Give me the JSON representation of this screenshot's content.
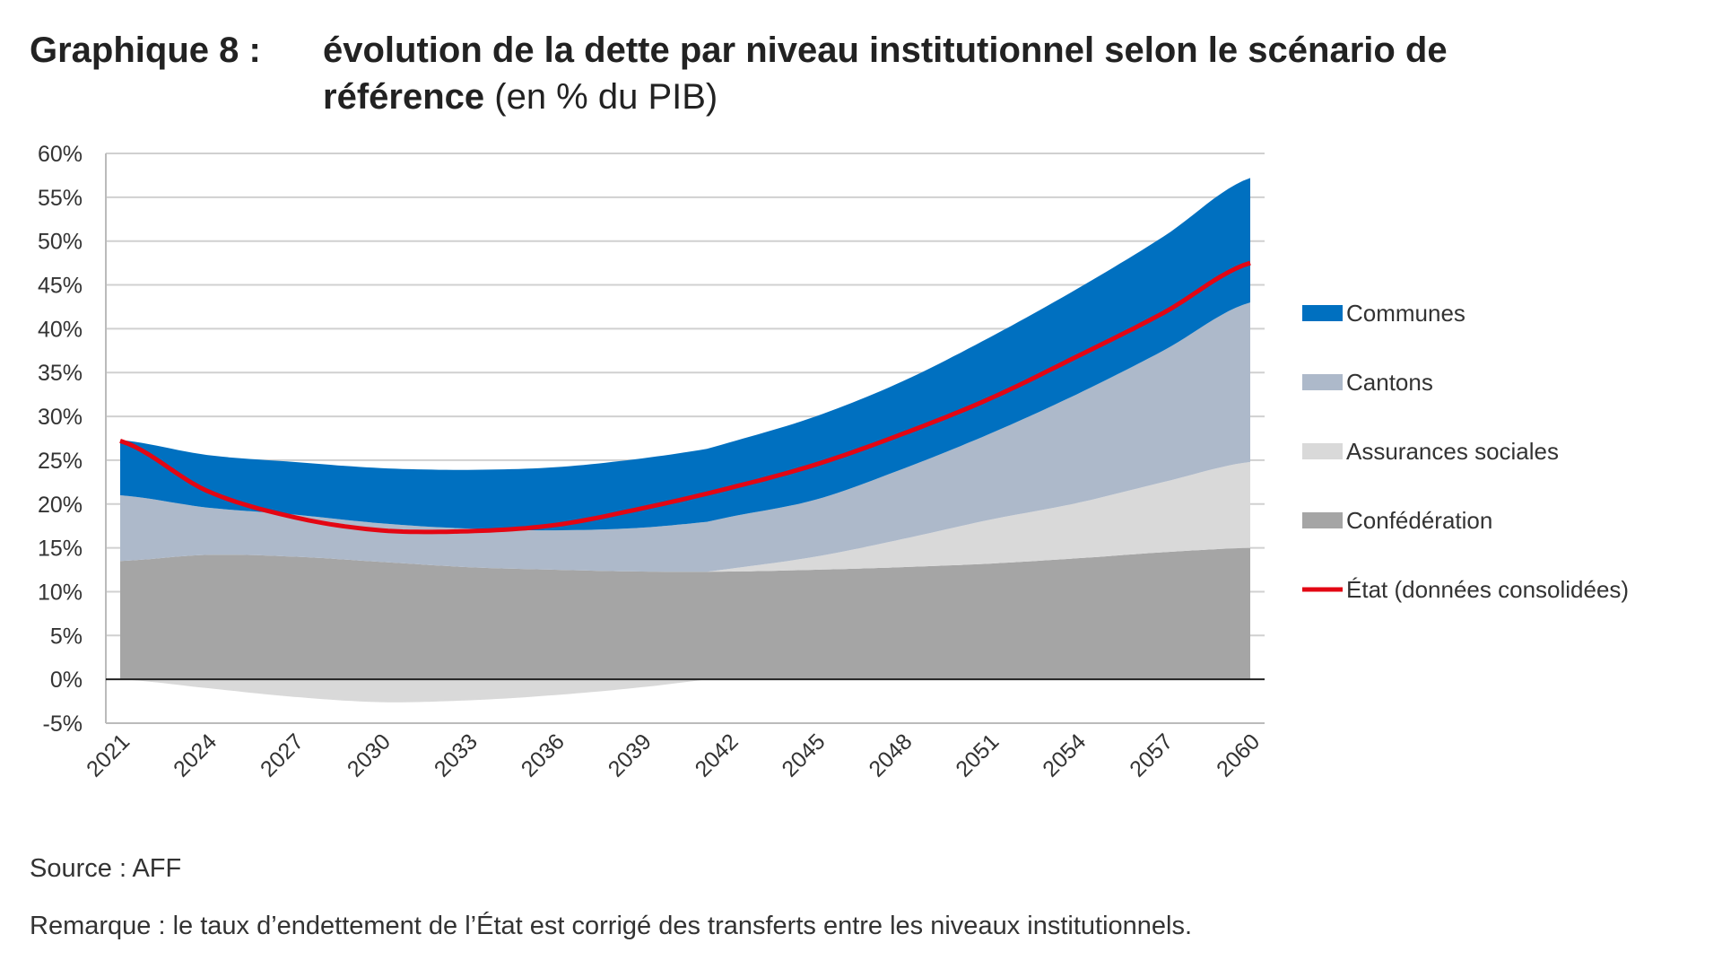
{
  "header": {
    "label": "Graphique 8 :",
    "title": "évolution de la dette par niveau institutionnel selon le scénario de référence",
    "unit": "(en % du PIB)"
  },
  "footer": {
    "source": "Source : AFF",
    "remark": "Remarque : le taux d’endettement de l’État est corrigé des transferts entre les niveaux institutionnels."
  },
  "chart_data": {
    "type": "area",
    "stacked": true,
    "title": "évolution de la dette par niveau institutionnel selon le scénario de référence (en % du PIB)",
    "xlabel": "",
    "ylabel": "",
    "x": [
      2021,
      2024,
      2027,
      2030,
      2033,
      2036,
      2039,
      2042,
      2045,
      2048,
      2051,
      2054,
      2057,
      2060
    ],
    "x_ticks": [
      "2021",
      "2024",
      "2027",
      "2030",
      "2033",
      "2036",
      "2039",
      "2042",
      "2045",
      "2048",
      "2051",
      "2054",
      "2057",
      "2060"
    ],
    "ylim": [
      -5,
      60
    ],
    "y_ticks": [
      "-5%",
      "0%",
      "5%",
      "10%",
      "15%",
      "20%",
      "25%",
      "30%",
      "35%",
      "40%",
      "45%",
      "50%",
      "55%",
      "60%"
    ],
    "grid": true,
    "legend_position": "right",
    "series": [
      {
        "name": "Confédération",
        "kind": "area",
        "color": "#a5a5a5",
        "values": [
          13.5,
          14.2,
          14.0,
          13.4,
          12.8,
          12.5,
          12.3,
          12.3,
          12.5,
          12.8,
          13.2,
          13.8,
          14.5,
          15.0
        ]
      },
      {
        "name": "Assurances sociales",
        "kind": "area",
        "color": "#d9d9d9",
        "values": [
          0,
          -1.0,
          -2.0,
          -2.6,
          -2.4,
          -1.8,
          -0.9,
          0.3,
          1.5,
          3.2,
          5.0,
          6.3,
          8.0,
          9.8
        ]
      },
      {
        "name": "Cantons",
        "kind": "area",
        "color": "#adb9ca",
        "values": [
          7.5,
          5.4,
          4.8,
          4.4,
          4.4,
          4.5,
          5.0,
          5.9,
          6.5,
          8.0,
          9.8,
          12.4,
          15.0,
          18.2
        ]
      },
      {
        "name": "Communes",
        "kind": "area",
        "color": "#0070c0",
        "values": [
          6.3,
          6.0,
          6.0,
          6.3,
          6.7,
          7.2,
          7.9,
          8.5,
          9.5,
          10.0,
          11.0,
          12.0,
          13.0,
          14.2
        ]
      },
      {
        "name": "État (données consolidées)",
        "kind": "line",
        "color": "#e30613",
        "values": [
          27.2,
          21.5,
          18.5,
          17.0,
          16.9,
          17.6,
          19.5,
          21.8,
          24.5,
          28.0,
          32.0,
          36.8,
          41.8,
          47.5
        ]
      }
    ],
    "legend_order": [
      "Communes",
      "Cantons",
      "Assurances sociales",
      "Confédération",
      "État (données consolidées)"
    ]
  }
}
